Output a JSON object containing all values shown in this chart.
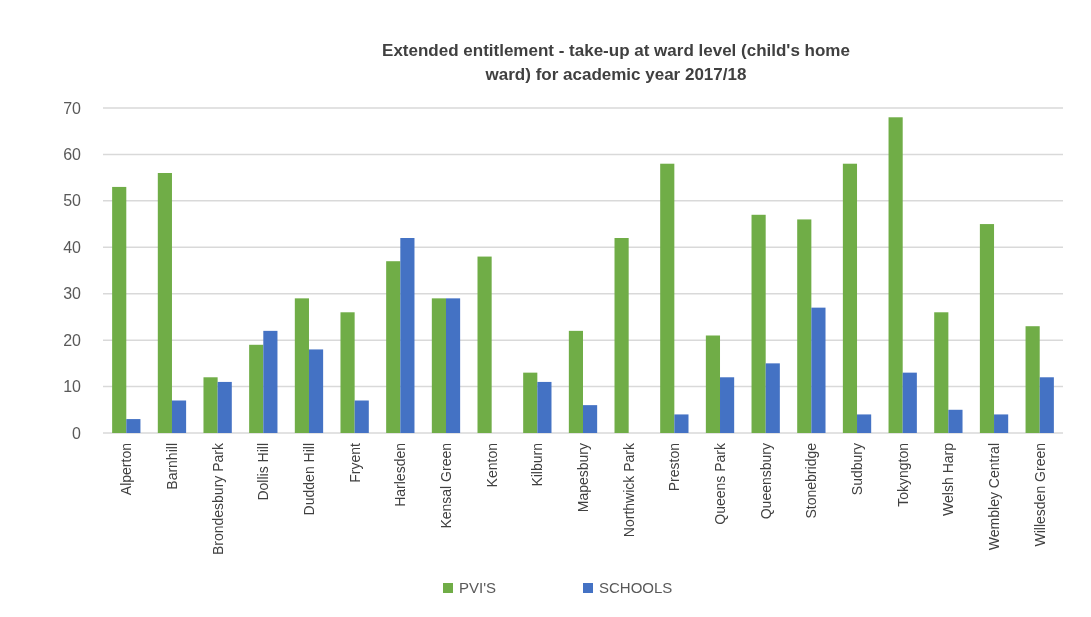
{
  "chart_data": {
    "type": "bar",
    "title": "Extended entitlement - take-up at ward level (child's home ward) for academic year 2017/18",
    "categories": [
      "Alperton",
      "Barnhill",
      "Brondesbury Park",
      "Dollis Hill",
      "Dudden Hill",
      "Fryent",
      "Harlesden",
      "Kensal Green",
      "Kenton",
      "Kilburn",
      "Mapesbury",
      "Northwick Park",
      "Preston",
      "Queens Park",
      "Queensbury",
      "Stonebridge",
      "Sudbury",
      "Tokyngton",
      "Welsh Harp",
      "Wembley Central",
      "Willesden Green"
    ],
    "series": [
      {
        "name": "PVI'S",
        "color": "#70ad47",
        "values": [
          53,
          56,
          12,
          19,
          29,
          26,
          37,
          29,
          38,
          13,
          22,
          42,
          58,
          21,
          47,
          46,
          58,
          68,
          26,
          45,
          23
        ]
      },
      {
        "name": "SCHOOLS",
        "color": "#4472c4",
        "values": [
          3,
          7,
          11,
          22,
          18,
          7,
          42,
          29,
          0,
          11,
          6,
          0,
          4,
          12,
          15,
          27,
          4,
          13,
          5,
          4,
          12
        ]
      }
    ],
    "ylim": [
      0,
      70
    ],
    "yticks": [
      0,
      10,
      20,
      30,
      40,
      50,
      60,
      70
    ],
    "grid": "y",
    "legend": "bottom"
  }
}
